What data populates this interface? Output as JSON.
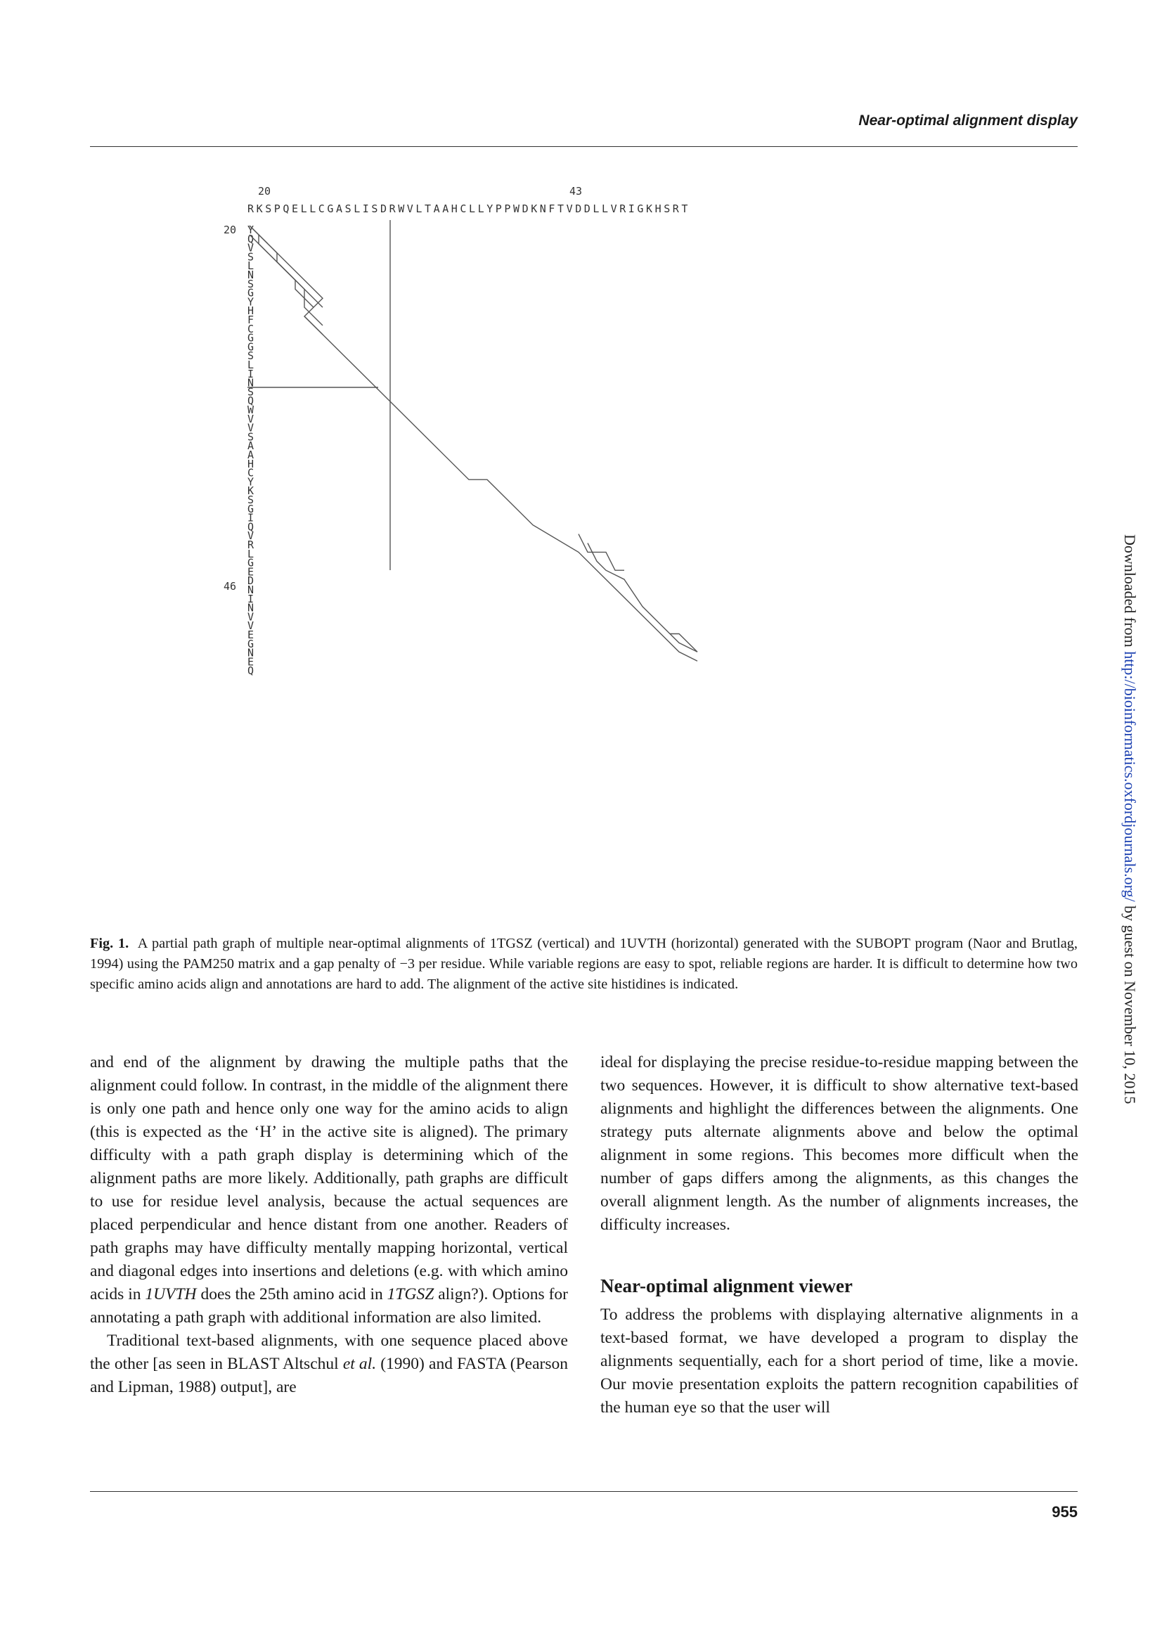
{
  "running_head": "Near-optimal alignment display",
  "page_number": "955",
  "side_note": {
    "prefix": "Downloaded from ",
    "link": "http://bioinformatics.oxfordjournals.org/",
    "suffix": " by guest on November 10, 2015"
  },
  "figure": {
    "top_number_left": "20",
    "top_number_mid": "43",
    "left_number_top": "20",
    "left_number_mid": "46",
    "horizontal_sequence": "RKSPQELLCGASLISDRWVLTAAHCLLYPPWDKNFTVDDLLVRIGKHSRT",
    "vertical_sequence": "YQVSLNSGYHFCGGSLINSQWVVSAAHCYKSGIQVRLGEDNINVVEGNEQ",
    "caption_label": "Fig. 1.",
    "caption_text": "A partial path graph of multiple near-optimal alignments of 1TGSZ (vertical) and 1UVTH (horizontal) generated with the SUBOPT program (Naor and Brutlag, 1994) using the PAM250 matrix and a gap penalty of −3 per residue. While variable regions are easy to spot, reliable regions are harder. It is difficult to determine how two specific amino acids align and annotations are hard to add. The alignment of the active site histidines is indicated."
  },
  "left_column": {
    "p1_a": "and end of the alignment by drawing the multiple paths that the alignment could follow. In contrast, in the middle of the alignment there is only one path and hence only one way for the amino acids to align (this is expected as the ‘H’ in the active site is aligned). The primary difficulty with a path graph display is determining which of the alignment paths are more likely. Additionally, path graphs are difficult to use for residue level analysis, because the actual sequences are placed perpendicular and hence distant from one another. Readers of path graphs may have difficulty mentally mapping horizontal, vertical and diagonal edges into insertions and deletions (e.g. with which amino acids in ",
    "p1_i1": "1UVTH",
    "p1_b": " does the 25th amino acid in ",
    "p1_i2": "1TGSZ",
    "p1_c": " align?). Options for annotating a path graph with additional information are also limited.",
    "p2_a": "Traditional text-based alignments, with one sequence placed above the other [as seen in BLAST Altschul ",
    "p2_i": "et al.",
    "p2_b": " (1990) and FASTA (Pearson and Lipman, 1988) output], are"
  },
  "right_column": {
    "p1": "ideal for displaying the precise residue-to-residue mapping between the two sequences. However, it is difficult to show alternative text-based alignments and highlight the differences between the alignments. One strategy puts alternate alignments above and below the optimal alignment in some regions. This becomes more difficult when the number of gaps differs among the alignments, as this changes the overall alignment length. As the number of alignments increases, the difficulty increases.",
    "heading": "Near-optimal alignment viewer",
    "p2": "To address the problems with displaying alternative alignments in a text-based format, we have developed a program to display the alignments sequentially, each for a short period of time, like a movie. Our movie presentation exploits the pattern recognition capabilities of the human eye so that the user will"
  }
}
